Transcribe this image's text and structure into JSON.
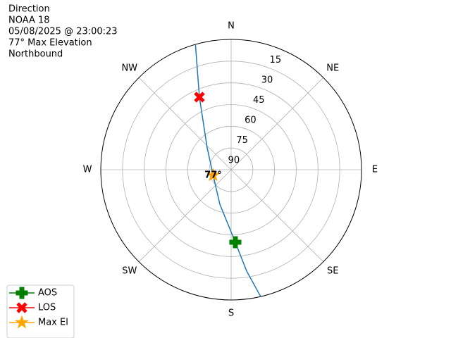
{
  "chart_data": {
    "type": "polar",
    "title_lines": [
      "Direction",
      "NOAA 18",
      "05/08/2025 @ 23:00:23",
      "77° Max Elevation",
      "Northbound"
    ],
    "ylim": [
      90,
      0
    ],
    "yticks": [
      15,
      30,
      45,
      60,
      75,
      90
    ],
    "xticks": [
      {
        "value": 0,
        "label": "N"
      },
      {
        "value": 45,
        "label": "NE"
      },
      {
        "value": 90,
        "label": "E"
      },
      {
        "value": 135,
        "label": "SE"
      },
      {
        "value": 180,
        "label": "S"
      },
      {
        "value": 225,
        "label": "SW"
      },
      {
        "value": 270,
        "label": "W"
      },
      {
        "value": 315,
        "label": "NW"
      }
    ],
    "grid": true,
    "track": {
      "color": "#1f77b4",
      "azimuth": [
        344.1,
        336.4,
        312.4,
        252.9,
        198.1,
        176.7,
        171.3,
        166.9
      ],
      "elevation": [
        0,
        35.3,
        67.6,
        77,
        64.9,
        39.8,
        19.1,
        0
      ]
    },
    "series": [
      {
        "name": "AOS",
        "color": "green",
        "marker": "plus",
        "azimuth": [
          176.7
        ],
        "elevation": [
          39.8
        ]
      },
      {
        "name": "LOS",
        "color": "red",
        "marker": "x",
        "azimuth": [
          336.4
        ],
        "elevation": [
          35.3
        ]
      },
      {
        "name": "Max El",
        "color": "orange",
        "marker": "star",
        "azimuth": [
          252.9
        ],
        "elevation": [
          77
        ],
        "value_labels": [
          "77°"
        ]
      }
    ],
    "legend": "lower left"
  }
}
